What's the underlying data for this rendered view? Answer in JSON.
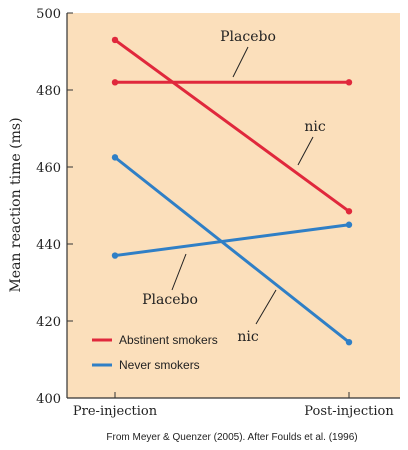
{
  "chart_data": {
    "type": "line",
    "categories": [
      "Pre-injection",
      "Post-injection"
    ],
    "ylabel": "Mean reaction time (ms)",
    "ylim": [
      400,
      500
    ],
    "yticks": [
      400,
      420,
      440,
      460,
      480,
      500
    ],
    "background_color": "#fbdfbb",
    "series": [
      {
        "name": "Abstinent smokers",
        "condition": "Placebo",
        "color": "#e0283c",
        "values": [
          482,
          482
        ]
      },
      {
        "name": "Abstinent smokers",
        "condition": "nic",
        "color": "#e0283c",
        "values": [
          493,
          448.5
        ]
      },
      {
        "name": "Never smokers",
        "condition": "Placebo",
        "color": "#2f7fc6",
        "values": [
          437,
          445
        ]
      },
      {
        "name": "Never smokers",
        "condition": "nic",
        "color": "#2f7fc6",
        "values": [
          462.5,
          414.5
        ]
      }
    ],
    "annotations": [
      {
        "text": "Placebo",
        "series_index": 0
      },
      {
        "text": "nic",
        "series_index": 1
      },
      {
        "text": "Placebo",
        "series_index": 2
      },
      {
        "text": "nic",
        "series_index": 3
      }
    ],
    "legend": {
      "placement": "bottom-left",
      "entries": [
        {
          "label": "Abstinent smokers",
          "color": "#e0283c"
        },
        {
          "label": "Never smokers",
          "color": "#2f7fc6"
        }
      ]
    }
  },
  "caption": "From Meyer  & Quenzer (2005). After Foulds et al. (1996)"
}
